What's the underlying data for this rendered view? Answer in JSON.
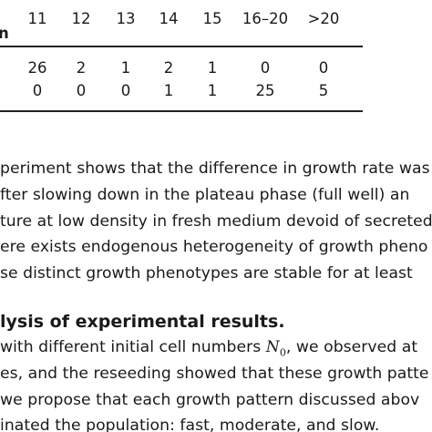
{
  "table": {
    "header_fragment": "n",
    "columns": [
      "11",
      "12",
      "13",
      "14",
      "15",
      "16–20",
      ">20"
    ],
    "rows": [
      [
        "26",
        "2",
        "1",
        "2",
        "1",
        "0",
        "0"
      ],
      [
        "0",
        "0",
        "0",
        "1",
        "1",
        "25",
        "5"
      ]
    ]
  },
  "paragraph1": {
    "lines": [
      "periment shows that the difference in growth rate was",
      "fter slowing down in the plateau phase (full well) an",
      "ture at low density in fresh medium devoid of secreted",
      "ere exists endogenous heterogeneity of growth pheno",
      "se distinct growth phenotypes are stable for at least"
    ]
  },
  "section": {
    "heading": "lysis of experimental results."
  },
  "paragraph2": {
    "line1_before": "with different initial cell numbers ",
    "symbol_base": "N",
    "symbol_sub": "0",
    "line1_after": ", we observed at",
    "lines": [
      "es, and the reseeding showed that these growth patte",
      "we propose that each growth pattern discussed abov",
      "inated the population: fast, moderate, and slow."
    ]
  }
}
